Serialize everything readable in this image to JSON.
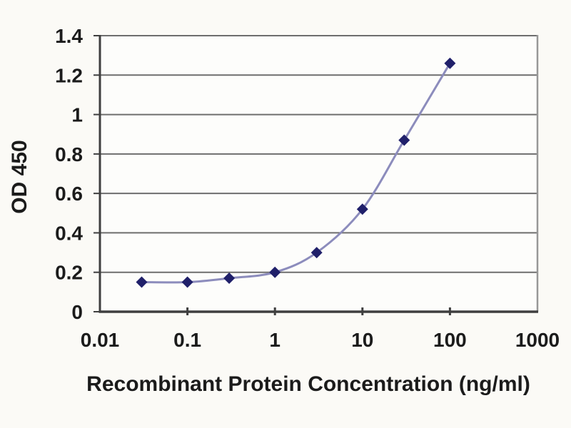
{
  "chart_data": {
    "type": "line",
    "title": "",
    "xlabel": "Recombinant Protein Concentration (ng/ml)",
    "ylabel": "OD 450",
    "x_scale": "log",
    "xlim": [
      0.01,
      1000
    ],
    "ylim": [
      0,
      1.4
    ],
    "x": [
      0.03,
      0.1,
      0.3,
      1,
      3,
      10,
      30,
      100
    ],
    "y": [
      0.15,
      0.15,
      0.17,
      0.2,
      0.3,
      0.52,
      0.87,
      1.26
    ],
    "x_ticks": [
      0.01,
      0.1,
      1,
      10,
      100,
      1000
    ],
    "x_tick_labels": [
      "0.01",
      "0.1",
      "1",
      "10",
      "100",
      "1000"
    ],
    "y_ticks": [
      0,
      0.2,
      0.4,
      0.6,
      0.8,
      1,
      1.2,
      1.4
    ],
    "y_tick_labels": [
      "0",
      "0.2",
      "0.4",
      "0.6",
      "0.8",
      "1",
      "1.2",
      "1.4"
    ],
    "grid": "horizontal",
    "legend": "none",
    "marker": "diamond",
    "smooth": true,
    "colors": {
      "line": "#8c8cbc",
      "marker": "#20206a",
      "grid": "#6e6e6e",
      "axis": "#3f3f3f",
      "border": "#979797",
      "text": "#1b1b1b",
      "background": "#fbfaf6"
    }
  }
}
